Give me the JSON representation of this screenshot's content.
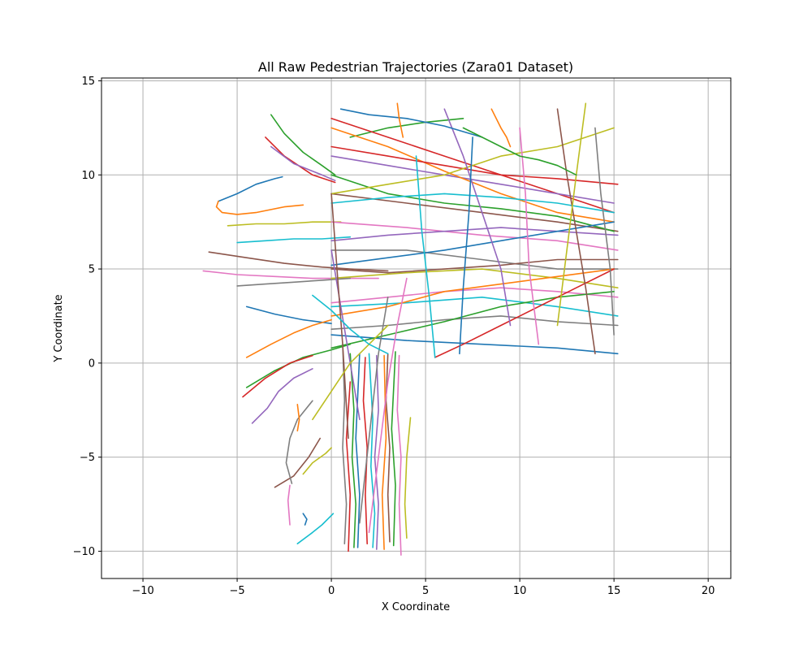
{
  "chart_data": {
    "type": "line",
    "title": "All Raw Pedestrian Trajectories (Zara01 Dataset)",
    "xlabel": "X Coordinate",
    "ylabel": "Y Coordinate",
    "xlim": [
      -12.2,
      21.2
    ],
    "ylim": [
      -11.45,
      15.15
    ],
    "x_ticks": [
      -10,
      -5,
      0,
      5,
      10,
      15,
      20
    ],
    "x_tick_labels": [
      "−10",
      "−5",
      "0",
      "5",
      "10",
      "15",
      "20"
    ],
    "y_ticks": [
      -10,
      -5,
      0,
      5,
      10,
      15
    ],
    "y_tick_labels": [
      "−10",
      "−5",
      "0",
      "5",
      "10",
      "15"
    ],
    "grid": true,
    "legend": "none",
    "colors": [
      "#1f77b4",
      "#ff7f0e",
      "#2ca02c",
      "#d62728",
      "#9467bd",
      "#8c564b",
      "#e377c2",
      "#7f7f7f",
      "#bcbd22",
      "#17becf"
    ],
    "series": [
      {
        "x": [
          -6.0,
          -5.0,
          -4.0,
          -3.0,
          -2.6
        ],
        "y": [
          8.6,
          9.0,
          9.5,
          9.8,
          9.9
        ]
      },
      {
        "x": [
          -6.0,
          -6.1,
          -5.8,
          -5.0,
          -4.0,
          -2.5,
          -1.5
        ],
        "y": [
          8.6,
          8.3,
          8.0,
          7.9,
          8.0,
          8.3,
          8.4
        ]
      },
      {
        "x": [
          -3.2,
          -2.5,
          -1.5,
          -0.5,
          0.2
        ],
        "y": [
          13.2,
          12.2,
          11.2,
          10.5,
          10.0
        ]
      },
      {
        "x": [
          -3.5,
          -2.5,
          -1.0,
          0.2
        ],
        "y": [
          12.0,
          11.0,
          10.0,
          9.6
        ]
      },
      {
        "x": [
          -3.2,
          -2.0,
          -0.5,
          0.2
        ],
        "y": [
          11.5,
          10.6,
          10.0,
          9.7
        ]
      },
      {
        "x": [
          -6.5,
          -4.5,
          -2.5,
          -0.5,
          1.0,
          3.0
        ],
        "y": [
          5.9,
          5.6,
          5.3,
          5.1,
          5.0,
          4.9
        ]
      },
      {
        "x": [
          -6.8,
          -5.0,
          -3.0,
          -1.0,
          0.5,
          2.5
        ],
        "y": [
          4.9,
          4.7,
          4.6,
          4.5,
          4.5,
          4.5
        ]
      },
      {
        "x": [
          -5.0,
          -3.5,
          -2.0,
          -0.5,
          1.0
        ],
        "y": [
          4.1,
          4.2,
          4.3,
          4.4,
          4.5
        ]
      },
      {
        "x": [
          -5.5,
          -4.0,
          -2.5,
          -1.0,
          0.5
        ],
        "y": [
          7.3,
          7.4,
          7.4,
          7.5,
          7.5
        ]
      },
      {
        "x": [
          -5.0,
          -3.5,
          -2.0,
          -0.5,
          1.0
        ],
        "y": [
          6.4,
          6.5,
          6.6,
          6.6,
          6.7
        ]
      },
      {
        "x": [
          -4.5,
          -3.0,
          -1.5,
          0.0
        ],
        "y": [
          3.0,
          2.6,
          2.3,
          2.1
        ]
      },
      {
        "x": [
          -4.5,
          -3.2,
          -2.0,
          -1.0,
          0.0
        ],
        "y": [
          0.3,
          1.0,
          1.6,
          2.0,
          2.3
        ]
      },
      {
        "x": [
          -4.5,
          -3.0,
          -1.5,
          0.0,
          1.0
        ],
        "y": [
          -1.3,
          -0.4,
          0.3,
          0.7,
          1.0
        ]
      },
      {
        "x": [
          -4.7,
          -3.5,
          -2.2,
          -1.0
        ],
        "y": [
          -1.8,
          -0.8,
          0.0,
          0.4
        ]
      },
      {
        "x": [
          -4.2,
          -3.4,
          -2.8,
          -2.0,
          -1.0
        ],
        "y": [
          -3.2,
          -2.4,
          -1.5,
          -0.8,
          -0.3
        ]
      },
      {
        "x": [
          -3.0,
          -2.0,
          -1.2,
          -0.6
        ],
        "y": [
          -6.6,
          -6.0,
          -5.0,
          -4.0
        ]
      },
      {
        "x": [
          -2.2,
          -2.3,
          -2.2
        ],
        "y": [
          -8.6,
          -7.3,
          -6.5
        ]
      },
      {
        "x": [
          -2.1,
          -2.4,
          -2.2,
          -1.8,
          -1.0
        ],
        "y": [
          -6.4,
          -5.3,
          -4.0,
          -3.0,
          -2.0
        ]
      },
      {
        "x": [
          -1.5,
          -1.0,
          -0.3,
          0.0
        ],
        "y": [
          -5.9,
          -5.3,
          -4.8,
          -4.5
        ]
      },
      {
        "x": [
          -1.8,
          -1.0,
          -0.5,
          0.1
        ],
        "y": [
          -9.6,
          -9.0,
          -8.6,
          -8.0
        ]
      },
      {
        "x": [
          -1.5,
          -1.3,
          -1.4
        ],
        "y": [
          -8.0,
          -8.3,
          -8.6
        ]
      },
      {
        "x": [
          -1.8,
          -1.7,
          -1.8
        ],
        "y": [
          -2.2,
          -3.0,
          -3.6
        ]
      },
      {
        "x": [
          1.0,
          3.0,
          5.0,
          7.0
        ],
        "y": [
          12.0,
          12.5,
          12.8,
          13.0
        ]
      },
      {
        "x": [
          0.0,
          3.0,
          6.0,
          9.0,
          12.0,
          15.0
        ],
        "y": [
          13.0,
          12.0,
          11.0,
          10.0,
          9.0,
          8.0
        ]
      },
      {
        "x": [
          0.0,
          3.0,
          6.0,
          9.0,
          12.0,
          15.0
        ],
        "y": [
          11.0,
          10.5,
          10.0,
          9.5,
          9.0,
          8.5
        ]
      },
      {
        "x": [
          0.0,
          4.0,
          8.0,
          12.0,
          15.2
        ],
        "y": [
          9.0,
          8.5,
          8.0,
          7.5,
          7.0
        ]
      },
      {
        "x": [
          0.0,
          4.0,
          8.0,
          12.0,
          15.2
        ],
        "y": [
          7.5,
          7.2,
          6.8,
          6.5,
          6.0
        ]
      },
      {
        "x": [
          0.0,
          4.0,
          8.0,
          12.0,
          15.2
        ],
        "y": [
          6.0,
          6.0,
          5.5,
          5.0,
          5.0
        ]
      },
      {
        "x": [
          0.0,
          4.0,
          8.0,
          12.0,
          15.2
        ],
        "y": [
          4.5,
          4.8,
          5.0,
          4.5,
          4.0
        ]
      },
      {
        "x": [
          0.0,
          4.0,
          8.0,
          12.0,
          15.2
        ],
        "y": [
          3.0,
          3.2,
          3.5,
          3.0,
          2.5
        ]
      },
      {
        "x": [
          0.0,
          4.0,
          8.0,
          12.0,
          15.2
        ],
        "y": [
          1.5,
          1.2,
          1.0,
          0.8,
          0.5
        ]
      },
      {
        "x": [
          0.0,
          3.0,
          6.0,
          9.0,
          12.0,
          15.0
        ],
        "y": [
          12.5,
          11.5,
          10.2,
          9.0,
          8.0,
          7.5
        ]
      },
      {
        "x": [
          0.0,
          3.0,
          6.0,
          9.0,
          12.0,
          15.0
        ],
        "y": [
          10.0,
          9.0,
          8.5,
          8.2,
          7.8,
          7.0
        ]
      },
      {
        "x": [
          15.2,
          12.0,
          9.0,
          6.0,
          3.0,
          0.0
        ],
        "y": [
          9.5,
          9.8,
          10.0,
          10.5,
          11.0,
          11.5
        ]
      },
      {
        "x": [
          15.2,
          12.0,
          9.0,
          6.0,
          3.0,
          0.0
        ],
        "y": [
          6.8,
          7.0,
          7.2,
          7.0,
          6.8,
          6.5
        ]
      },
      {
        "x": [
          15.2,
          12.0,
          9.0,
          6.0,
          3.0,
          0.0
        ],
        "y": [
          5.5,
          5.5,
          5.2,
          5.0,
          4.8,
          5.0
        ]
      },
      {
        "x": [
          15.2,
          12.0,
          9.0,
          6.0,
          3.0,
          0.0
        ],
        "y": [
          3.5,
          3.8,
          4.0,
          3.8,
          3.5,
          3.2
        ]
      },
      {
        "x": [
          15.2,
          12.0,
          9.0,
          6.0,
          3.0,
          0.0
        ],
        "y": [
          2.0,
          2.2,
          2.5,
          2.3,
          2.0,
          1.8
        ]
      },
      {
        "x": [
          15.0,
          12.0,
          9.0,
          6.0,
          3.0,
          0.0
        ],
        "y": [
          12.5,
          11.5,
          11.0,
          10.0,
          9.5,
          9.0
        ]
      },
      {
        "x": [
          15.0,
          12.0,
          9.0,
          6.0,
          3.0,
          0.0
        ],
        "y": [
          8.0,
          8.5,
          8.8,
          9.0,
          8.8,
          8.5
        ]
      },
      {
        "x": [
          0.0,
          3.0,
          6.0,
          9.0,
          12.0,
          15.0
        ],
        "y": [
          5.2,
          5.6,
          6.0,
          6.5,
          7.0,
          7.5
        ]
      },
      {
        "x": [
          0.0,
          3.0,
          6.0,
          9.0,
          12.0,
          15.0
        ],
        "y": [
          2.5,
          3.0,
          3.8,
          4.2,
          4.6,
          5.0
        ]
      },
      {
        "x": [
          0.0,
          3.0,
          6.0,
          9.0,
          12.0,
          15.0
        ],
        "y": [
          0.8,
          1.5,
          2.2,
          3.0,
          3.5,
          3.8
        ]
      },
      {
        "x": [
          5.5,
          7.0,
          9.0,
          11.0,
          13.0,
          15.0
        ],
        "y": [
          0.3,
          1.0,
          2.0,
          3.0,
          4.0,
          5.0
        ]
      },
      {
        "x": [
          6.0,
          7.0,
          8.0,
          9.0,
          9.5
        ],
        "y": [
          13.5,
          11.0,
          8.0,
          5.0,
          2.0
        ]
      },
      {
        "x": [
          12.0,
          12.5,
          13.0,
          13.5,
          14.0
        ],
        "y": [
          13.5,
          10.0,
          7.0,
          4.0,
          0.5
        ]
      },
      {
        "x": [
          10.0,
          10.3,
          10.5,
          11.0
        ],
        "y": [
          12.5,
          9.0,
          5.0,
          1.0
        ]
      },
      {
        "x": [
          14.0,
          14.3,
          14.8,
          15.0
        ],
        "y": [
          12.5,
          9.0,
          5.0,
          1.5
        ]
      },
      {
        "x": [
          13.5,
          13.0,
          12.5,
          12.0
        ],
        "y": [
          13.8,
          10.0,
          6.0,
          2.0
        ]
      },
      {
        "x": [
          4.5,
          4.8,
          5.2,
          5.5
        ],
        "y": [
          11.0,
          7.0,
          3.5,
          0.3
        ]
      },
      {
        "x": [
          7.5,
          7.3,
          7.0,
          6.8
        ],
        "y": [
          12.0,
          8.0,
          4.0,
          0.5
        ]
      },
      {
        "x": [
          8.5,
          9.0,
          9.3,
          9.5
        ],
        "y": [
          13.5,
          12.5,
          12.0,
          11.5
        ]
      },
      {
        "x": [
          1.0,
          1.2,
          1.1,
          1.3,
          1.2
        ],
        "y": [
          0.5,
          -2.5,
          -5.0,
          -7.5,
          -9.8
        ]
      },
      {
        "x": [
          1.8,
          1.7,
          1.9,
          1.8,
          1.9
        ],
        "y": [
          0.3,
          -2.0,
          -4.5,
          -7.0,
          -9.6
        ]
      },
      {
        "x": [
          2.4,
          2.5,
          2.3,
          2.5,
          2.4
        ],
        "y": [
          0.4,
          -2.5,
          -5.0,
          -7.5,
          -9.9
        ]
      },
      {
        "x": [
          3.0,
          2.9,
          3.1,
          3.0,
          3.1
        ],
        "y": [
          0.5,
          -2.0,
          -4.5,
          -7.0,
          -9.5
        ]
      },
      {
        "x": [
          3.6,
          3.5,
          3.7,
          3.6,
          3.7
        ],
        "y": [
          0.4,
          -2.5,
          -5.0,
          -7.5,
          -10.2
        ]
      },
      {
        "x": [
          0.6,
          0.7,
          0.6,
          0.8,
          0.7
        ],
        "y": [
          1.0,
          -2.0,
          -4.5,
          -7.5,
          -9.6
        ]
      },
      {
        "x": [
          4.2,
          4.0,
          3.9,
          4.0
        ],
        "y": [
          -2.9,
          -5.0,
          -7.5,
          -9.3
        ]
      },
      {
        "x": [
          2.0,
          2.2,
          2.1,
          2.3,
          2.2
        ],
        "y": [
          0.5,
          -3.0,
          -5.5,
          -8.0,
          -9.8
        ]
      },
      {
        "x": [
          1.4,
          1.5,
          1.3,
          1.5
        ],
        "y": [
          -9.8,
          -7.0,
          -4.0,
          0.5
        ]
      },
      {
        "x": [
          2.8,
          2.7,
          2.9,
          2.8
        ],
        "y": [
          -9.9,
          -7.0,
          -4.0,
          0.4
        ]
      },
      {
        "x": [
          3.3,
          3.4,
          3.2,
          3.4
        ],
        "y": [
          -9.7,
          -6.5,
          -3.5,
          0.6
        ]
      },
      {
        "x": [
          0.9,
          1.0,
          0.8,
          1.0
        ],
        "y": [
          -10.0,
          -7.0,
          -4.0,
          -1.0
        ]
      },
      {
        "x": [
          0.0,
          0.5,
          1.0,
          1.5
        ],
        "y": [
          6.0,
          3.0,
          0.0,
          -3.0
        ]
      },
      {
        "x": [
          0.0,
          0.3,
          0.6,
          0.9
        ],
        "y": [
          9.0,
          5.0,
          1.0,
          -4.0
        ]
      },
      {
        "x": [
          2.0,
          2.5,
          3.0,
          3.5,
          4.0
        ],
        "y": [
          -9.0,
          -5.0,
          -1.0,
          2.0,
          4.5
        ]
      },
      {
        "x": [
          1.5,
          2.0,
          2.5,
          3.0
        ],
        "y": [
          -8.5,
          -4.0,
          0.5,
          3.5
        ]
      },
      {
        "x": [
          -1.0,
          0.0,
          1.0,
          2.0,
          3.0
        ],
        "y": [
          -3.0,
          -1.5,
          0.0,
          1.0,
          2.0
        ]
      },
      {
        "x": [
          3.0,
          2.0,
          1.0,
          0.0,
          -1.0
        ],
        "y": [
          0.5,
          1.0,
          1.8,
          2.8,
          3.6
        ]
      },
      {
        "x": [
          0.5,
          2.0,
          4.0,
          6.0,
          8.0
        ],
        "y": [
          13.5,
          13.2,
          13.0,
          12.6,
          12.0
        ]
      },
      {
        "x": [
          3.5,
          3.6,
          3.7,
          3.8
        ],
        "y": [
          13.8,
          13.0,
          12.5,
          12.0
        ]
      },
      {
        "x": [
          7.0,
          8.0,
          9.0,
          10.0,
          11.0,
          12.0,
          13.0
        ],
        "y": [
          12.5,
          12.0,
          11.5,
          11.0,
          10.8,
          10.5,
          10.0
        ]
      }
    ]
  }
}
